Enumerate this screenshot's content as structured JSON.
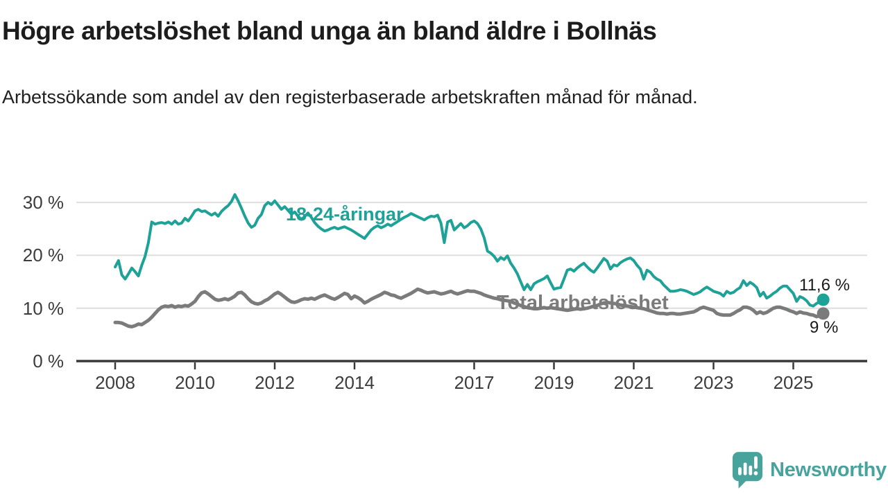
{
  "header": {
    "title": "Högre arbetslöshet bland unga än bland äldre i Bollnäs",
    "subtitle": "Arbetssökande som andel av den registerbaserade arbetskraften månad för månad."
  },
  "annotations": {
    "young_series_label": "18-24-åringar",
    "total_series_label": "Total arbetslöshet",
    "young_end_value": "11,6 %",
    "total_end_value": "9 %"
  },
  "branding": {
    "logo_icon": "bar-chart-speech-bubble-icon",
    "logo_text": "Newsworthy",
    "brand_color": "#48a39d"
  },
  "chart_data": {
    "type": "line",
    "title": "Högre arbetslöshet bland unga än bland äldre i Bollnäs",
    "xlabel": "",
    "ylabel": "",
    "y_unit": "%",
    "frequency": "monthly",
    "x_start": "2008-01",
    "x_end": "2025-10",
    "ylim": [
      0,
      33
    ],
    "grid": "horizontal",
    "legend_position": "inline-labels",
    "xticks": [
      2008,
      2010,
      2012,
      2014,
      2017,
      2019,
      2021,
      2023,
      2025
    ],
    "yticks": [
      {
        "value": 0,
        "label": "0 %"
      },
      {
        "value": 10,
        "label": "10 %"
      },
      {
        "value": 20,
        "label": "20 %"
      },
      {
        "value": 30,
        "label": "30 %"
      }
    ],
    "colors": {
      "young": "#1ea298",
      "total": "#7b7b7b",
      "grid": "#dedede",
      "axis": "#383838"
    },
    "series": [
      {
        "name": "18-24-åringar",
        "color": "#1ea298",
        "stroke_width": 4,
        "end_value": 11.6,
        "end_label": "11,6 %",
        "values": [
          17.8,
          19.0,
          16.3,
          15.5,
          16.5,
          17.6,
          16.9,
          16.1,
          18.1,
          19.8,
          22.4,
          26.3,
          25.9,
          26.1,
          26.2,
          26.0,
          26.3,
          25.9,
          26.5,
          25.9,
          26.1,
          27.0,
          26.5,
          27.4,
          28.4,
          28.7,
          28.3,
          28.4,
          28.0,
          27.6,
          28.0,
          27.4,
          28.3,
          28.9,
          29.4,
          30.2,
          31.5,
          30.3,
          28.9,
          27.4,
          26.1,
          25.3,
          25.7,
          27.0,
          27.7,
          29.4,
          30.0,
          29.6,
          30.3,
          29.5,
          28.7,
          29.2,
          28.5,
          27.8,
          28.2,
          27.4,
          26.8,
          27.3,
          28.0,
          27.2,
          26.2,
          25.5,
          25.0,
          24.6,
          24.8,
          25.1,
          25.3,
          25.0,
          25.2,
          25.4,
          25.1,
          24.8,
          24.4,
          24.0,
          23.6,
          23.2,
          24.0,
          24.8,
          25.3,
          25.6,
          25.2,
          25.5,
          25.9,
          25.6,
          26.0,
          26.4,
          26.8,
          27.2,
          27.5,
          27.9,
          27.6,
          27.3,
          27.0,
          26.7,
          27.1,
          27.4,
          27.3,
          27.6,
          26.1,
          22.4,
          26.3,
          26.6,
          24.8,
          25.4,
          26.0,
          25.2,
          25.6,
          26.2,
          26.5,
          26.0,
          25.0,
          23.3,
          20.8,
          20.4,
          19.8,
          18.9,
          19.6,
          19.2,
          19.9,
          18.5,
          17.6,
          16.5,
          15.0,
          13.5,
          14.5,
          13.5,
          14.6,
          15.0,
          15.3,
          15.6,
          16.1,
          14.8,
          13.6,
          13.8,
          13.9,
          15.5,
          17.2,
          17.4,
          17.0,
          17.6,
          18.1,
          18.5,
          17.8,
          17.2,
          16.8,
          17.6,
          18.5,
          19.4,
          18.9,
          17.4,
          18.2,
          18.0,
          18.6,
          19.0,
          19.3,
          19.5,
          19.0,
          18.1,
          17.4,
          15.5,
          17.2,
          16.8,
          16.0,
          15.5,
          15.2,
          14.4,
          13.8,
          13.2,
          13.2,
          13.3,
          13.5,
          13.4,
          13.2,
          12.9,
          12.6,
          12.8,
          13.1,
          13.6,
          14.0,
          13.6,
          13.2,
          13.0,
          12.8,
          12.3,
          13.2,
          12.8,
          13.0,
          13.5,
          13.9,
          15.2,
          14.3,
          14.9,
          14.5,
          13.9,
          12.3,
          13.0,
          11.9,
          12.3,
          12.8,
          13.2,
          13.8,
          14.2,
          14.2,
          13.5,
          12.8,
          11.3,
          12.2,
          11.9,
          11.4,
          10.6,
          10.4,
          10.9,
          11.2,
          11.6
        ]
      },
      {
        "name": "Total arbetslöshet",
        "color": "#7b7b7b",
        "stroke_width": 5,
        "end_value": 9.0,
        "end_label": "9 %",
        "values": [
          7.3,
          7.3,
          7.2,
          6.9,
          6.6,
          6.5,
          6.7,
          7.0,
          6.9,
          7.3,
          7.7,
          8.3,
          9.0,
          9.7,
          10.2,
          10.4,
          10.3,
          10.5,
          10.2,
          10.4,
          10.3,
          10.5,
          10.4,
          10.8,
          11.3,
          12.2,
          12.9,
          13.1,
          12.7,
          12.2,
          11.7,
          11.5,
          11.6,
          11.8,
          11.6,
          11.9,
          12.3,
          12.9,
          13.0,
          12.5,
          11.8,
          11.2,
          10.9,
          10.8,
          11.0,
          11.4,
          11.7,
          12.2,
          12.7,
          13.0,
          12.6,
          12.1,
          11.6,
          11.2,
          11.1,
          11.3,
          11.6,
          11.8,
          11.7,
          11.9,
          11.7,
          12.0,
          12.3,
          12.5,
          12.2,
          11.9,
          11.7,
          12.0,
          12.4,
          12.8,
          12.6,
          11.8,
          12.3,
          12.0,
          11.6,
          11.0,
          11.3,
          11.7,
          12.0,
          12.3,
          12.6,
          13.0,
          12.8,
          12.5,
          12.4,
          12.1,
          11.9,
          12.2,
          12.5,
          12.8,
          13.2,
          13.6,
          13.4,
          13.1,
          12.9,
          13.0,
          13.1,
          12.9,
          12.7,
          12.8,
          13.0,
          13.2,
          12.9,
          12.7,
          12.9,
          13.1,
          13.3,
          13.2,
          13.2,
          13.0,
          12.8,
          12.5,
          12.3,
          12.1,
          11.9,
          11.8,
          11.6,
          11.5,
          11.4,
          11.3,
          11.0,
          10.8,
          10.5,
          10.3,
          10.1,
          10.0,
          9.9,
          9.9,
          10.0,
          10.1,
          10.0,
          10.1,
          10.0,
          9.9,
          9.8,
          9.7,
          9.6,
          9.7,
          9.8,
          9.9,
          9.8,
          9.9,
          10.0,
          10.2,
          10.4,
          10.5,
          10.8,
          11.0,
          11.1,
          11.0,
          10.9,
          10.8,
          10.6,
          10.5,
          10.4,
          10.3,
          10.2,
          10.1,
          10.0,
          9.9,
          9.7,
          9.5,
          9.3,
          9.1,
          9.0,
          9.0,
          8.9,
          9.0,
          9.0,
          8.9,
          8.9,
          9.0,
          9.1,
          9.2,
          9.3,
          9.6,
          10.0,
          10.2,
          10.0,
          9.8,
          9.6,
          9.0,
          8.8,
          8.7,
          8.7,
          8.7,
          9.0,
          9.4,
          9.7,
          10.2,
          10.2,
          10.0,
          9.6,
          9.0,
          9.3,
          9.0,
          9.2,
          9.6,
          10.0,
          10.2,
          10.2,
          10.0,
          9.8,
          9.5,
          9.3,
          9.0,
          9.3,
          9.1,
          9.0,
          8.8,
          8.7,
          8.4,
          8.6,
          9.0
        ]
      }
    ]
  }
}
